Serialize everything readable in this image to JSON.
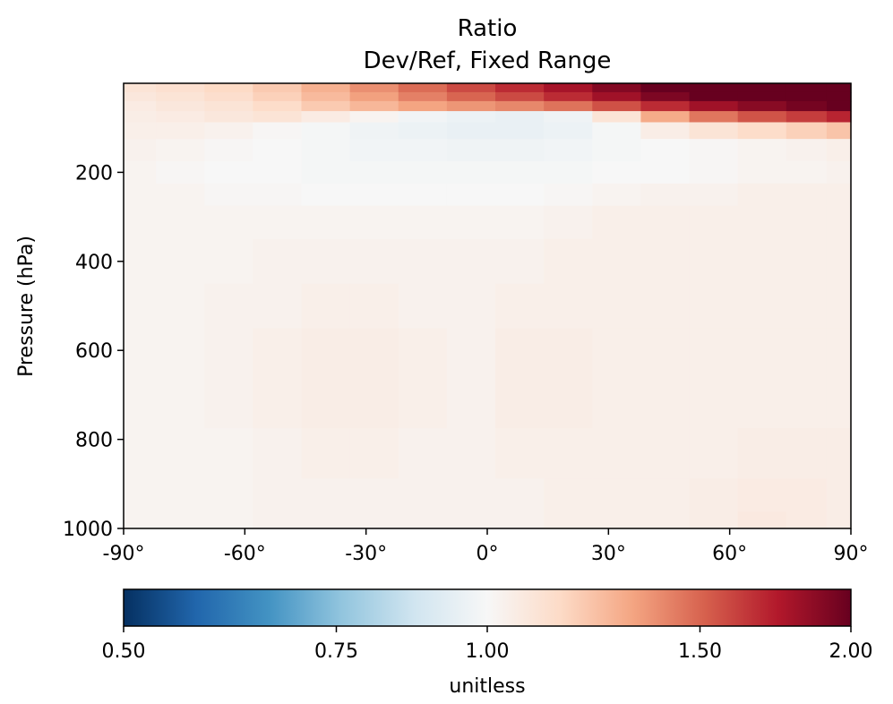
{
  "chart_data": {
    "type": "heatmap",
    "title": "Ratio",
    "subtitle": "Dev/Ref, Fixed Range",
    "xlabel": "",
    "ylabel": "Pressure (hPa)",
    "x_range": [
      -90,
      90
    ],
    "y_range": [
      1000,
      0
    ],
    "x_ticks": [
      -90,
      -60,
      -30,
      0,
      30,
      60,
      90
    ],
    "x_tick_labels": [
      "-90°",
      "-60°",
      "-30°",
      "0°",
      "30°",
      "60°",
      "90°"
    ],
    "y_ticks": [
      200,
      400,
      600,
      800,
      1000
    ],
    "y_tick_labels": [
      "200",
      "400",
      "600",
      "800",
      "1000"
    ],
    "grid": false,
    "colormap": "RdBu_r",
    "colorbar": {
      "label": "unitless",
      "ticks": [
        0.5,
        0.75,
        1.0,
        1.5,
        2.0
      ],
      "tick_labels": [
        "0.50",
        "0.75",
        "1.00",
        "1.50",
        "2.00"
      ],
      "range": [
        0.5,
        2.0
      ]
    },
    "latitudes": [
      -88,
      -76,
      -64,
      -52,
      -40,
      -28,
      -16,
      -4,
      8,
      20,
      32,
      44,
      56,
      68,
      80,
      88
    ],
    "pressure_levels": [
      10,
      30,
      50,
      75,
      100,
      150,
      200,
      250,
      300,
      400,
      500,
      600,
      700,
      850,
      925,
      1000
    ],
    "values": [
      [
        1.1,
        1.12,
        1.15,
        1.2,
        1.28,
        1.38,
        1.48,
        1.58,
        1.68,
        1.78,
        1.9,
        2.0,
        2.0,
        2.0,
        2.0,
        2.0
      ],
      [
        1.08,
        1.1,
        1.13,
        1.18,
        1.25,
        1.33,
        1.42,
        1.5,
        1.58,
        1.68,
        1.8,
        1.92,
        2.0,
        2.0,
        2.0,
        2.0
      ],
      [
        1.06,
        1.08,
        1.1,
        1.14,
        1.2,
        1.26,
        1.32,
        1.36,
        1.4,
        1.46,
        1.56,
        1.68,
        1.8,
        1.88,
        1.95,
        2.0
      ],
      [
        1.05,
        1.06,
        1.08,
        1.1,
        1.06,
        1.02,
        0.98,
        0.96,
        0.95,
        0.97,
        1.1,
        1.3,
        1.45,
        1.55,
        1.62,
        1.7
      ],
      [
        1.04,
        1.04,
        1.03,
        1.01,
        0.99,
        0.97,
        0.96,
        0.95,
        0.95,
        0.96,
        0.99,
        1.05,
        1.1,
        1.14,
        1.18,
        1.22
      ],
      [
        1.03,
        1.02,
        1.01,
        1.0,
        0.99,
        0.98,
        0.98,
        0.97,
        0.97,
        0.98,
        0.99,
        1.0,
        1.01,
        1.02,
        1.03,
        1.04
      ],
      [
        1.02,
        1.01,
        1.0,
        1.0,
        0.99,
        0.99,
        0.99,
        0.99,
        0.99,
        0.99,
        1.0,
        1.0,
        1.01,
        1.02,
        1.02,
        1.03
      ],
      [
        1.02,
        1.02,
        1.01,
        1.01,
        1.0,
        1.0,
        1.0,
        1.0,
        1.0,
        1.01,
        1.02,
        1.03,
        1.03,
        1.04,
        1.04,
        1.04
      ],
      [
        1.02,
        1.02,
        1.02,
        1.02,
        1.02,
        1.02,
        1.02,
        1.02,
        1.02,
        1.03,
        1.04,
        1.04,
        1.04,
        1.04,
        1.04,
        1.04
      ],
      [
        1.02,
        1.02,
        1.02,
        1.03,
        1.03,
        1.03,
        1.03,
        1.03,
        1.03,
        1.04,
        1.04,
        1.04,
        1.04,
        1.04,
        1.04,
        1.04
      ],
      [
        1.02,
        1.02,
        1.03,
        1.03,
        1.04,
        1.04,
        1.03,
        1.03,
        1.04,
        1.04,
        1.04,
        1.04,
        1.04,
        1.04,
        1.04,
        1.04
      ],
      [
        1.02,
        1.02,
        1.03,
        1.04,
        1.05,
        1.05,
        1.04,
        1.03,
        1.05,
        1.05,
        1.04,
        1.04,
        1.04,
        1.04,
        1.04,
        1.04
      ],
      [
        1.02,
        1.02,
        1.03,
        1.04,
        1.05,
        1.05,
        1.04,
        1.03,
        1.05,
        1.05,
        1.04,
        1.04,
        1.04,
        1.04,
        1.04,
        1.04
      ],
      [
        1.02,
        1.02,
        1.02,
        1.03,
        1.04,
        1.04,
        1.03,
        1.03,
        1.04,
        1.04,
        1.04,
        1.04,
        1.04,
        1.05,
        1.05,
        1.05
      ],
      [
        1.02,
        1.02,
        1.02,
        1.03,
        1.03,
        1.03,
        1.03,
        1.03,
        1.03,
        1.04,
        1.04,
        1.04,
        1.05,
        1.06,
        1.06,
        1.05
      ],
      [
        1.02,
        1.02,
        1.02,
        1.03,
        1.03,
        1.03,
        1.03,
        1.03,
        1.03,
        1.04,
        1.04,
        1.04,
        1.05,
        1.07,
        1.06,
        1.05
      ]
    ]
  }
}
